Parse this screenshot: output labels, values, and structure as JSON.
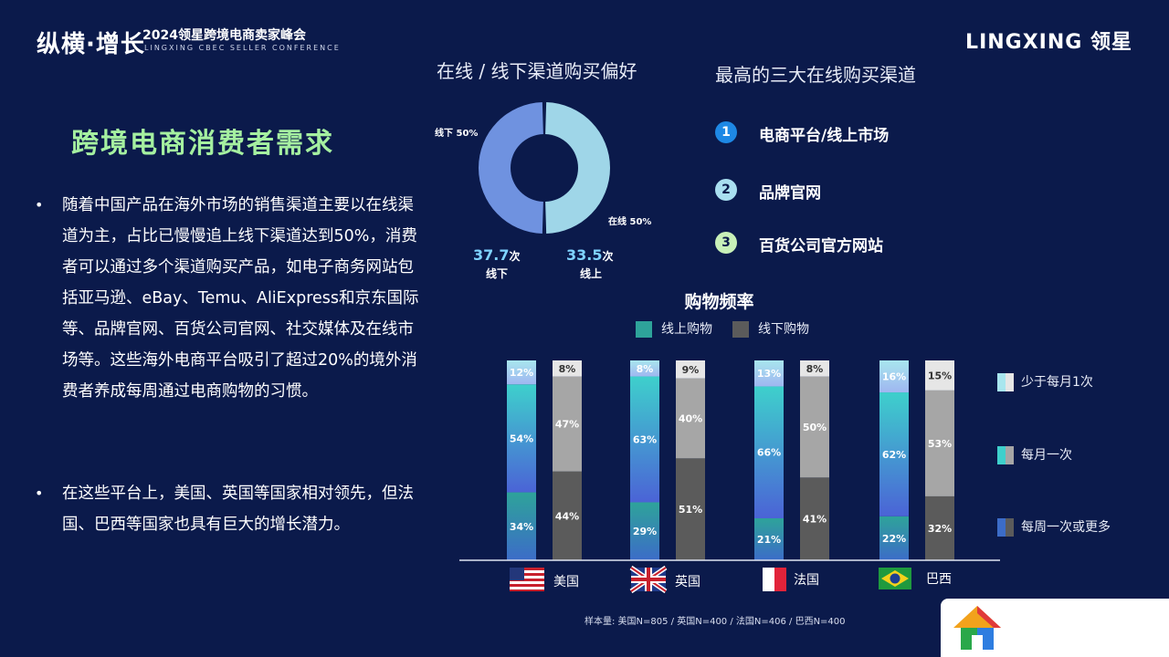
{
  "header": {
    "logo": "纵横·增长",
    "conference_title": "2024领星跨境电商卖家峰会",
    "conference_sub": "LINGXING CBEC SELLER CONFERENCE",
    "brand": "LINGXING 领星"
  },
  "left": {
    "title": "跨境电商消费者需求",
    "bullets": [
      "随着中国产品在海外市场的销售渠道主要以在线渠道为主，占比已慢慢追上线下渠道达到50%，消费者可以通过多个渠道购买产品，如电子商务网站包括亚马逊、eBay、Temu、AliExpress和京东国际等、品牌官网、百货公司官网、社交媒体及在线市场等。这些海外电商平台吸引了超过20%的境外消费者养成每周通过电商购物的习惯。",
      "在这些平台上，美国、英国等国家相对领先，但法国、巴西等国家也具有巨大的增长潜力。"
    ]
  },
  "preference": {
    "title": "在线 / 线下渠道购买偏好",
    "offline_label": "线下 50%",
    "online_label": "在线 50%",
    "offline_stat": "37.7",
    "offline_unit": "次",
    "offline_cap": "线下",
    "online_stat": "33.5",
    "online_unit": "次",
    "online_cap": "线上"
  },
  "top3": {
    "title": "最高的三大在线购买渠道",
    "items": [
      {
        "rank": "1",
        "label": "电商平台/线上市场",
        "color": "#1e88e5"
      },
      {
        "rank": "2",
        "label": "品牌官网",
        "color": "#a9dff0"
      },
      {
        "rank": "3",
        "label": "百货公司官方网站",
        "color": "#c8f0b8"
      }
    ]
  },
  "chart_data": [
    {
      "type": "pie",
      "title": "在线 / 线下渠道购买偏好",
      "slices": [
        {
          "label": "在线",
          "value": 50,
          "color": "#9fd6e8"
        },
        {
          "label": "线下",
          "value": 50,
          "color": "#6f92e0"
        }
      ]
    },
    {
      "type": "bar",
      "stacked": true,
      "title": "购物频率",
      "categories": [
        "美国",
        "英国",
        "法国",
        "巴西"
      ],
      "groups": [
        "线上购物",
        "线下购物"
      ],
      "series": [
        {
          "name": "每周一次或更多",
          "online": [
            34,
            29,
            21,
            22
          ],
          "offline": [
            44,
            51,
            41,
            32
          ]
        },
        {
          "name": "每月一次",
          "online": [
            54,
            63,
            66,
            62
          ],
          "offline": [
            47,
            40,
            50,
            53
          ]
        },
        {
          "name": "少于每月1次",
          "online": [
            12,
            8,
            13,
            16
          ],
          "offline": [
            8,
            9,
            8,
            15
          ]
        }
      ],
      "ylim": [
        0,
        100
      ],
      "legend": [
        "线上购物",
        "线下购物"
      ],
      "side_legend": [
        "少于每月1次",
        "每月一次",
        "每周一次或更多"
      ],
      "note": "样本量: 美国N=805 / 英国N=400 / 法国N=406 / 巴西N=400"
    }
  ],
  "colors": {
    "background": "#0b1a4b",
    "online_weekly": "#2ea39a",
    "online_monthly_top": "#3ed0cc",
    "online_monthly_bottom": "#4b63d6",
    "online_less": "#a8d8ee",
    "offline_weekly": "#5b5b5b",
    "offline_monthly": "#a6a6a6",
    "offline_less": "#e6e6e6"
  }
}
